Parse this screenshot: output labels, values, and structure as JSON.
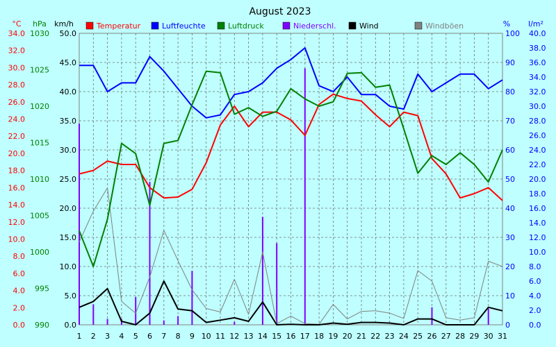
{
  "chart_data": {
    "type": "line",
    "title": "August 2023",
    "x": [
      1,
      2,
      3,
      4,
      5,
      6,
      7,
      8,
      9,
      10,
      11,
      12,
      13,
      14,
      15,
      16,
      17,
      18,
      19,
      20,
      21,
      22,
      23,
      24,
      25,
      26,
      27,
      28,
      29,
      30,
      31
    ],
    "xlim": [
      1,
      31
    ],
    "grid": true,
    "legend_position": "top",
    "axes": [
      {
        "id": "temp",
        "label": "°C",
        "side": "left",
        "min": 0,
        "max": 34,
        "step": 2,
        "decimals": 1,
        "color": "#ff0000"
      },
      {
        "id": "hpa",
        "label": "hPa",
        "side": "left",
        "min": 990,
        "max": 1030,
        "step": 5,
        "decimals": 0,
        "color": "#008000"
      },
      {
        "id": "kmh",
        "label": "km/h",
        "side": "left",
        "min": 0,
        "max": 50,
        "step": 5,
        "decimals": 1,
        "color": "#000000"
      },
      {
        "id": "pct",
        "label": "%",
        "side": "right",
        "min": 0,
        "max": 100,
        "step": 10,
        "decimals": 0,
        "color": "#0000ff"
      },
      {
        "id": "rain",
        "label": "l/m²",
        "side": "right",
        "min": 0,
        "max": 40,
        "step": 2,
        "decimals": 1,
        "color": "#0000ff"
      }
    ],
    "series": [
      {
        "name": "Windböen",
        "type": "line",
        "axis": "kmh",
        "color": "#808080",
        "width": 1,
        "values": [
          14.2,
          19.5,
          23.5,
          4.0,
          2.0,
          8.2,
          16.2,
          11.0,
          6.0,
          2.8,
          2.2,
          7.8,
          1.8,
          12.5,
          0.2,
          1.5,
          0.2,
          0.1,
          3.5,
          1.0,
          2.3,
          2.4,
          2.0,
          1.1,
          9.3,
          7.5,
          1.2,
          0.8,
          1.2,
          10.9,
          10.0
        ]
      },
      {
        "name": "Niederschl.",
        "type": "bar",
        "axis": "rain",
        "color": "#8000ff",
        "width": 2,
        "values": [
          27.6,
          2.8,
          0.8,
          0.8,
          3.8,
          19.6,
          0.6,
          1.2,
          7.4,
          0.0,
          0.0,
          0.4,
          0.0,
          14.8,
          11.2,
          0.0,
          35.2,
          0.0,
          0.0,
          0.0,
          0.0,
          0.0,
          0.0,
          0.0,
          0.0,
          2.4,
          0.0,
          0.0,
          0.0,
          2.2,
          0.0
        ]
      },
      {
        "name": "Temperatur",
        "type": "line",
        "axis": "temp",
        "color": "#ff0000",
        "width": 2,
        "values": [
          17.6,
          18.0,
          19.1,
          18.7,
          18.7,
          16.0,
          14.8,
          14.9,
          15.8,
          18.9,
          23.3,
          25.5,
          23.1,
          24.8,
          24.8,
          23.9,
          22.1,
          25.7,
          26.9,
          26.4,
          26.1,
          24.5,
          23.1,
          24.8,
          24.4,
          19.4,
          17.6,
          14.8,
          15.3,
          16.0,
          14.5
        ]
      },
      {
        "name": "Luftfeuchte",
        "type": "line",
        "axis": "pct",
        "color": "#0000ff",
        "width": 2,
        "values": [
          89,
          89,
          80,
          83,
          83,
          92,
          87,
          81,
          75,
          71,
          72,
          79,
          80,
          83,
          88,
          91,
          95,
          82,
          80,
          85,
          79,
          79,
          75,
          74,
          86,
          80,
          83,
          86,
          86,
          81,
          84
        ]
      },
      {
        "name": "Luftdruck",
        "type": "line",
        "axis": "hpa",
        "color": "#008000",
        "width": 2,
        "values": [
          1002.9,
          998.0,
          1004.5,
          1014.9,
          1013.5,
          1006.4,
          1014.9,
          1015.3,
          1020.2,
          1024.8,
          1024.6,
          1018.9,
          1019.8,
          1018.6,
          1019.3,
          1022.4,
          1021.0,
          1020.0,
          1020.6,
          1024.5,
          1024.6,
          1022.6,
          1022.9,
          1016.9,
          1010.8,
          1013.2,
          1012.0,
          1013.6,
          1012.0,
          1009.6,
          1014.0
        ]
      },
      {
        "name": "Wind",
        "type": "line",
        "axis": "kmh",
        "color": "#000000",
        "width": 2,
        "values": [
          3.0,
          4.0,
          6.2,
          0.6,
          0.0,
          2.0,
          7.5,
          2.7,
          2.4,
          0.4,
          0.8,
          1.2,
          0.6,
          3.9,
          0.0,
          0.1,
          0.0,
          0.0,
          0.3,
          0.1,
          0.4,
          0.4,
          0.3,
          0.0,
          1.0,
          1.0,
          0.0,
          0.0,
          0.0,
          3.0,
          2.4
        ]
      }
    ],
    "legend": [
      {
        "name": "Temperatur",
        "color": "#ff0000"
      },
      {
        "name": "Luftfeuchte",
        "color": "#0000ff"
      },
      {
        "name": "Luftdruck",
        "color": "#008000"
      },
      {
        "name": "Niederschl.",
        "color": "#8000ff"
      },
      {
        "name": "Wind",
        "color": "#000000"
      },
      {
        "name": "Windböen",
        "color": "#808080"
      }
    ]
  }
}
